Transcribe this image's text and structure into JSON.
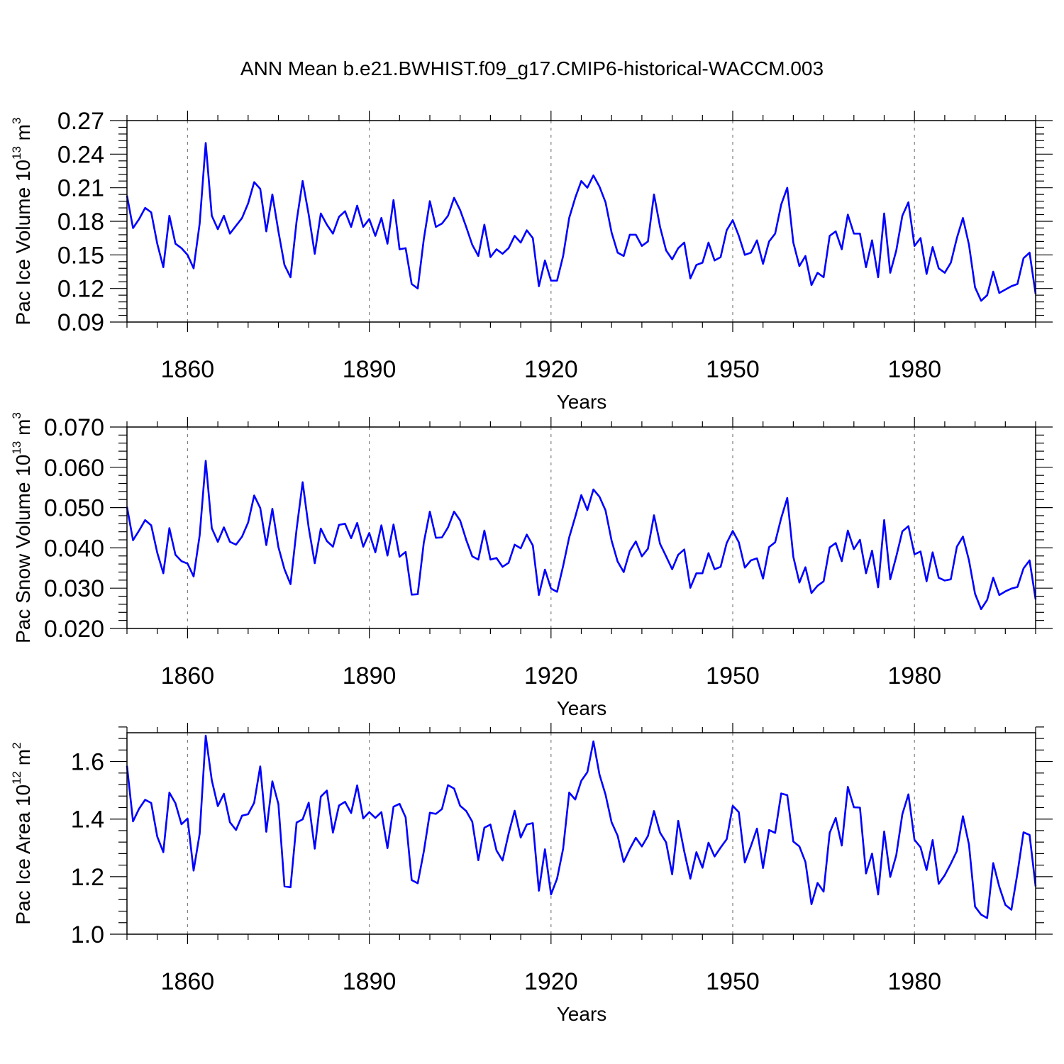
{
  "title": "ANN Mean b.e21.BWHIST.f09_g17.CMIP6-historical-WACCM.003",
  "colors": {
    "line": "#0000ff",
    "axis": "#000000",
    "grid": "#808080"
  },
  "chart_data": [
    {
      "type": "line",
      "xlabel": "Years",
      "ylabel_text": "Pac Ice Volume 10",
      "ylabel_exp": "13",
      "ylabel_unit": " m",
      "ylabel_unit_exp": "3",
      "xlim": [
        1850,
        2000
      ],
      "ylim": [
        0.09,
        0.27
      ],
      "x_ticks": [
        1860,
        1890,
        1920,
        1950,
        1980
      ],
      "x_tick_labels": [
        "1860",
        "1890",
        "1920",
        "1950",
        "1980"
      ],
      "y_ticks": [
        0.09,
        0.12,
        0.15,
        0.18,
        0.21,
        0.24,
        0.27
      ],
      "y_tick_labels": [
        "0.09",
        "0.12",
        "0.15",
        "0.18",
        "0.21",
        "0.24",
        "0.27"
      ],
      "x_start": 1850,
      "series": [
        {
          "name": "Pac Ice Volume",
          "values": [
            0.203,
            0.174,
            0.182,
            0.192,
            0.188,
            0.16,
            0.139,
            0.185,
            0.16,
            0.156,
            0.15,
            0.138,
            0.178,
            0.25,
            0.185,
            0.173,
            0.185,
            0.169,
            0.176,
            0.183,
            0.196,
            0.215,
            0.209,
            0.171,
            0.204,
            0.171,
            0.141,
            0.13,
            0.18,
            0.216,
            0.186,
            0.151,
            0.187,
            0.177,
            0.169,
            0.184,
            0.189,
            0.175,
            0.194,
            0.175,
            0.182,
            0.167,
            0.183,
            0.16,
            0.199,
            0.155,
            0.156,
            0.124,
            0.12,
            0.164,
            0.198,
            0.175,
            0.178,
            0.185,
            0.201,
            0.19,
            0.175,
            0.159,
            0.149,
            0.177,
            0.148,
            0.155,
            0.151,
            0.156,
            0.167,
            0.161,
            0.172,
            0.165,
            0.122,
            0.145,
            0.127,
            0.127,
            0.149,
            0.183,
            0.201,
            0.216,
            0.21,
            0.221,
            0.211,
            0.197,
            0.17,
            0.152,
            0.149,
            0.168,
            0.168,
            0.158,
            0.162,
            0.204,
            0.175,
            0.154,
            0.146,
            0.156,
            0.161,
            0.129,
            0.141,
            0.143,
            0.161,
            0.145,
            0.148,
            0.172,
            0.181,
            0.167,
            0.15,
            0.152,
            0.163,
            0.142,
            0.162,
            0.169,
            0.195,
            0.21,
            0.161,
            0.14,
            0.149,
            0.123,
            0.134,
            0.13,
            0.167,
            0.171,
            0.155,
            0.186,
            0.169,
            0.169,
            0.139,
            0.163,
            0.13,
            0.187,
            0.134,
            0.154,
            0.185,
            0.197,
            0.158,
            0.165,
            0.133,
            0.157,
            0.138,
            0.134,
            0.143,
            0.165,
            0.183,
            0.159,
            0.121,
            0.109,
            0.114,
            0.135,
            0.116,
            0.119,
            0.122,
            0.124,
            0.147,
            0.152,
            0.115
          ]
        }
      ]
    },
    {
      "type": "line",
      "xlabel": "Years",
      "ylabel_text": "Pac Snow Volume 10",
      "ylabel_exp": "13",
      "ylabel_unit": " m",
      "ylabel_unit_exp": "3",
      "xlim": [
        1850,
        2000
      ],
      "ylim": [
        0.02,
        0.07
      ],
      "x_ticks": [
        1860,
        1890,
        1920,
        1950,
        1980
      ],
      "x_tick_labels": [
        "1860",
        "1890",
        "1920",
        "1950",
        "1980"
      ],
      "y_ticks": [
        0.02,
        0.03,
        0.04,
        0.05,
        0.06,
        0.07
      ],
      "y_tick_labels": [
        "0.020",
        "0.030",
        "0.040",
        "0.050",
        "0.060",
        "0.070"
      ],
      "x_start": 1850,
      "series": [
        {
          "name": "Pac Snow Volume",
          "values": [
            0.0502,
            0.0419,
            0.0443,
            0.0469,
            0.0456,
            0.0388,
            0.0337,
            0.0449,
            0.0383,
            0.0367,
            0.0361,
            0.0329,
            0.0431,
            0.0616,
            0.0449,
            0.0415,
            0.0451,
            0.0415,
            0.0408,
            0.0428,
            0.0463,
            0.053,
            0.0499,
            0.0407,
            0.0497,
            0.0402,
            0.0347,
            0.031,
            0.0446,
            0.0563,
            0.045,
            0.0362,
            0.0448,
            0.0417,
            0.0403,
            0.0457,
            0.046,
            0.0424,
            0.0462,
            0.0403,
            0.0437,
            0.0389,
            0.0456,
            0.0381,
            0.0458,
            0.0378,
            0.039,
            0.0284,
            0.0285,
            0.0413,
            0.049,
            0.0425,
            0.0426,
            0.0451,
            0.049,
            0.0468,
            0.042,
            0.0379,
            0.0371,
            0.0443,
            0.0371,
            0.0375,
            0.0353,
            0.0363,
            0.0408,
            0.0399,
            0.0433,
            0.0406,
            0.0283,
            0.0346,
            0.0299,
            0.0291,
            0.0355,
            0.0426,
            0.0477,
            0.0531,
            0.0494,
            0.0545,
            0.0527,
            0.0493,
            0.0418,
            0.0366,
            0.034,
            0.0392,
            0.0416,
            0.0379,
            0.0398,
            0.0481,
            0.041,
            0.0379,
            0.0347,
            0.0383,
            0.0396,
            0.0301,
            0.0337,
            0.0337,
            0.0387,
            0.0347,
            0.0353,
            0.0412,
            0.0442,
            0.0414,
            0.0351,
            0.0369,
            0.0374,
            0.0324,
            0.0402,
            0.0414,
            0.0474,
            0.0524,
            0.0378,
            0.0314,
            0.0352,
            0.0288,
            0.0306,
            0.0317,
            0.0401,
            0.0412,
            0.0367,
            0.0443,
            0.0397,
            0.042,
            0.0337,
            0.0393,
            0.0302,
            0.0469,
            0.0322,
            0.0379,
            0.0441,
            0.0454,
            0.0384,
            0.0391,
            0.0317,
            0.0389,
            0.0326,
            0.0319,
            0.0322,
            0.0403,
            0.0428,
            0.0369,
            0.0286,
            0.0248,
            0.0271,
            0.0326,
            0.0283,
            0.0292,
            0.0299,
            0.0303,
            0.0349,
            0.0369,
            0.0272
          ]
        }
      ]
    },
    {
      "type": "line",
      "xlabel": "Years",
      "ylabel_text": "Pac Ice Area 10",
      "ylabel_exp": "12",
      "ylabel_unit": " m",
      "ylabel_unit_exp": "2",
      "xlim": [
        1850,
        2000
      ],
      "ylim": [
        1.0,
        1.7
      ],
      "x_ticks": [
        1860,
        1890,
        1920,
        1950,
        1980
      ],
      "x_tick_labels": [
        "1860",
        "1890",
        "1920",
        "1950",
        "1980"
      ],
      "y_ticks": [
        1.0,
        1.2,
        1.4,
        1.6
      ],
      "y_tick_labels": [
        "1.0",
        "1.2",
        "1.4",
        "1.6"
      ],
      "x_start": 1850,
      "series": [
        {
          "name": "Pac Ice Area",
          "values": [
            1.585,
            1.392,
            1.436,
            1.467,
            1.456,
            1.339,
            1.285,
            1.492,
            1.455,
            1.382,
            1.402,
            1.221,
            1.349,
            1.69,
            1.535,
            1.445,
            1.488,
            1.389,
            1.362,
            1.412,
            1.417,
            1.457,
            1.583,
            1.356,
            1.531,
            1.452,
            1.166,
            1.163,
            1.388,
            1.399,
            1.457,
            1.297,
            1.478,
            1.499,
            1.353,
            1.447,
            1.46,
            1.421,
            1.517,
            1.402,
            1.424,
            1.404,
            1.424,
            1.299,
            1.443,
            1.453,
            1.406,
            1.188,
            1.177,
            1.287,
            1.422,
            1.418,
            1.435,
            1.518,
            1.506,
            1.446,
            1.428,
            1.391,
            1.257,
            1.37,
            1.381,
            1.291,
            1.256,
            1.349,
            1.429,
            1.336,
            1.381,
            1.386,
            1.151,
            1.295,
            1.138,
            1.193,
            1.297,
            1.492,
            1.468,
            1.533,
            1.563,
            1.67,
            1.555,
            1.485,
            1.389,
            1.342,
            1.251,
            1.296,
            1.335,
            1.305,
            1.341,
            1.428,
            1.353,
            1.319,
            1.208,
            1.394,
            1.287,
            1.193,
            1.285,
            1.231,
            1.318,
            1.27,
            1.301,
            1.33,
            1.446,
            1.424,
            1.249,
            1.306,
            1.367,
            1.23,
            1.362,
            1.352,
            1.489,
            1.483,
            1.322,
            1.305,
            1.251,
            1.104,
            1.178,
            1.148,
            1.352,
            1.404,
            1.308,
            1.512,
            1.441,
            1.44,
            1.211,
            1.28,
            1.138,
            1.357,
            1.199,
            1.275,
            1.417,
            1.486,
            1.328,
            1.302,
            1.223,
            1.327,
            1.175,
            1.205,
            1.245,
            1.289,
            1.41,
            1.311,
            1.096,
            1.068,
            1.056,
            1.247,
            1.165,
            1.102,
            1.085,
            1.212,
            1.354,
            1.345,
            1.166
          ]
        }
      ]
    }
  ]
}
